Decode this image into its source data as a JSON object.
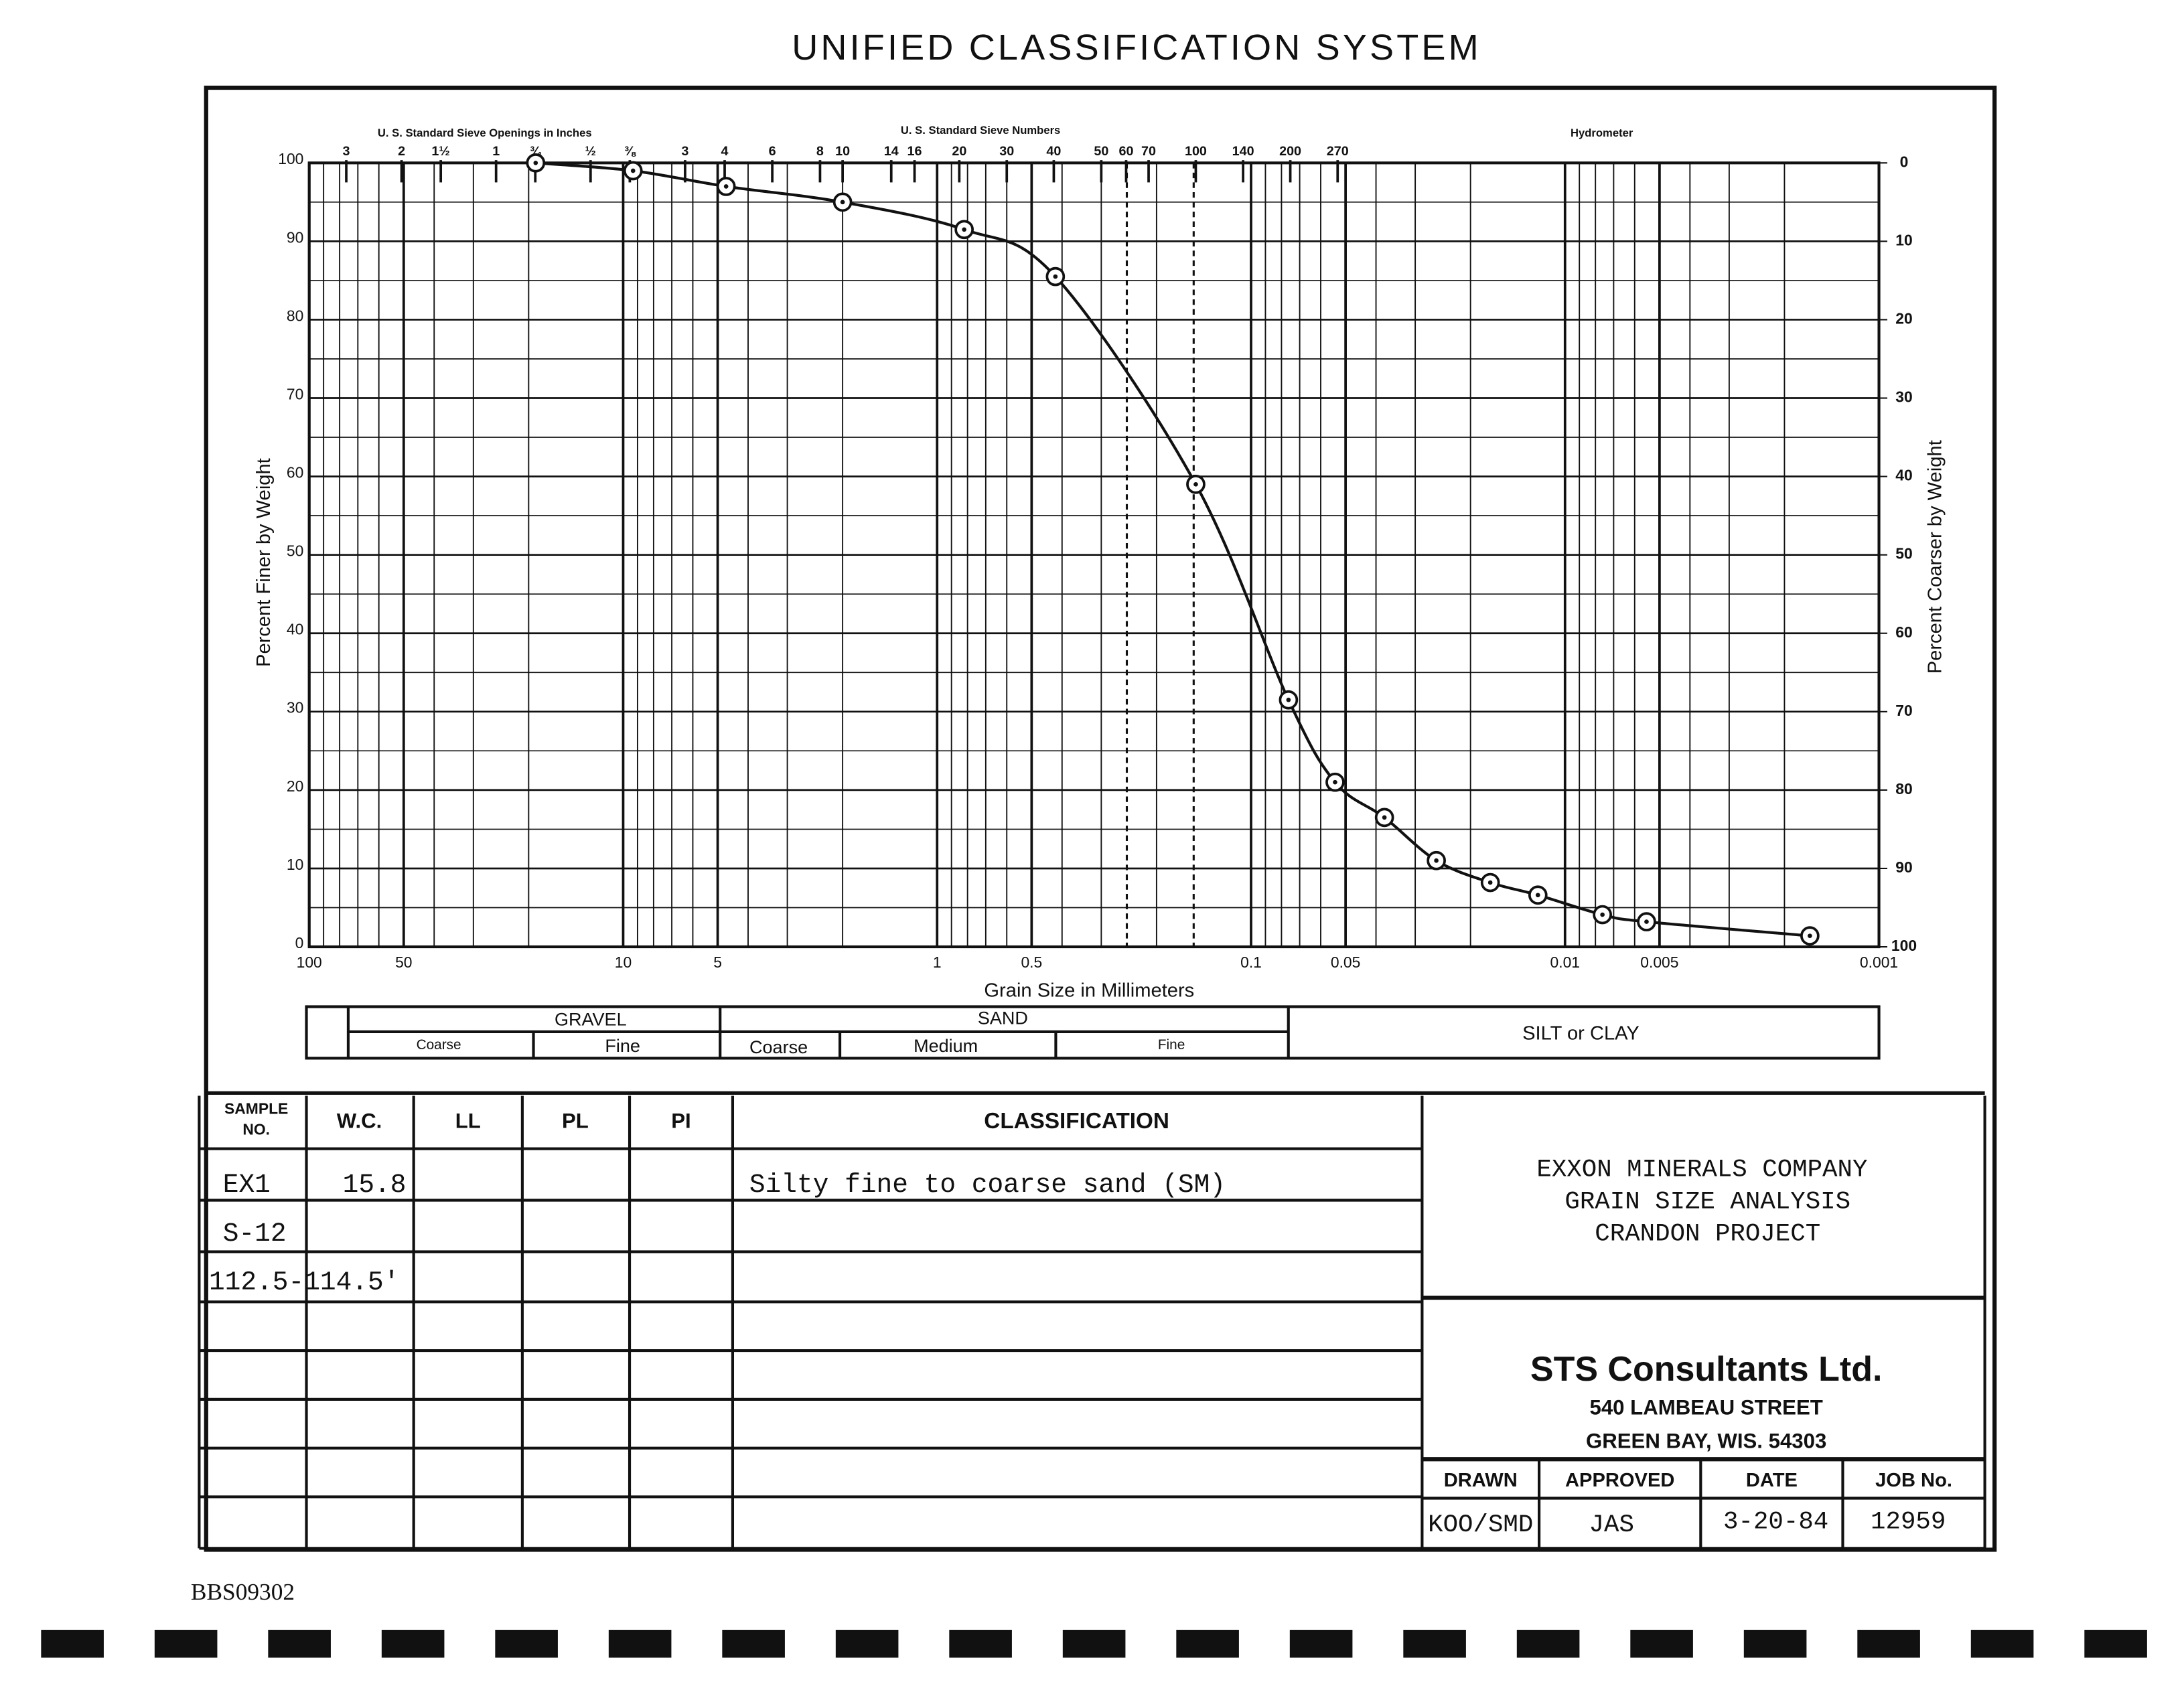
{
  "chart_data": {
    "type": "scatter",
    "title": "UNIFIED CLASSIFICATION SYSTEM",
    "x_label": "Grain Size in Millimeters",
    "y_label": "Percent Finer by Weight",
    "y2_label": "Percent Coarser by Weight",
    "x2_headers": [
      "U. S. Standard Sieve Openings in Inches",
      "U. S. Standard Sieve Numbers",
      "Hydrometer"
    ],
    "log_x": true,
    "grid": true,
    "color": "#111111",
    "x": [
      19,
      9.3,
      4.7,
      2.0,
      0.82,
      0.42,
      0.15,
      0.076,
      0.054,
      0.0376,
      0.0257,
      0.0173,
      0.0122,
      0.0076,
      0.0055,
      0.00166
    ],
    "values": [
      100,
      99,
      97,
      95,
      91.5,
      85.5,
      59,
      31.5,
      21,
      16.5,
      11,
      8.2,
      6.6,
      4.1,
      3.2,
      1.4
    ],
    "xlim": [
      100,
      0.001
    ],
    "xticks": [
      100,
      50,
      10,
      5,
      1,
      0.5,
      0.1,
      0.05,
      0.01,
      0.005,
      0.001
    ],
    "x2ticks": [
      {
        "value": 76.2,
        "label": "3"
      },
      {
        "value": 50.8,
        "label": "2"
      },
      {
        "value": 38.1,
        "label": "1½"
      },
      {
        "value": 25.4,
        "label": "1"
      },
      {
        "value": 19.05,
        "label": "¾"
      },
      {
        "value": 12.7,
        "label": "½"
      },
      {
        "value": 9.525,
        "label": "⅜"
      },
      {
        "value": 6.35,
        "label": "3"
      },
      {
        "value": 4.75,
        "label": "4"
      },
      {
        "value": 3.35,
        "label": "6"
      },
      {
        "value": 2.36,
        "label": "8"
      },
      {
        "value": 2.0,
        "label": "10"
      },
      {
        "value": 1.4,
        "label": "14"
      },
      {
        "value": 1.18,
        "label": "16"
      },
      {
        "value": 0.85,
        "label": "20"
      },
      {
        "value": 0.6,
        "label": "30"
      },
      {
        "value": 0.425,
        "label": "40"
      },
      {
        "value": 0.3,
        "label": "50"
      },
      {
        "value": 0.25,
        "label": "60"
      },
      {
        "value": 0.212,
        "label": "70"
      },
      {
        "value": 0.15,
        "label": "100"
      },
      {
        "value": 0.106,
        "label": "140"
      },
      {
        "value": 0.075,
        "label": "200"
      },
      {
        "value": 0.053,
        "label": "270"
      }
    ],
    "ylim": [
      0,
      100
    ],
    "yticks": [
      0,
      10,
      20,
      30,
      40,
      50,
      60,
      70,
      80,
      90,
      100
    ],
    "y2lim": [
      100,
      0
    ],
    "y2ticks": [
      0,
      10,
      20,
      30,
      40,
      50,
      60,
      70,
      80,
      90,
      100
    ],
    "classes": {
      "gravel": "GRAVEL",
      "sand": "SAND",
      "silt": "SILT or CLAY",
      "gravel_coarse": "Coarse",
      "gravel_fine": "Fine",
      "sand_coarse": "Coarse",
      "sand_medium": "Medium",
      "sand_fine": "Fine"
    }
  },
  "table": {
    "headers": {
      "sample_no": [
        "SAMPLE",
        "NO."
      ],
      "wc": "W.C.",
      "ll": "LL",
      "pl": "PL",
      "pi": "PI",
      "classification": "CLASSIFICATION"
    },
    "rows": [
      {
        "sample_no": "EX1",
        "wc": "15.8",
        "classification": "Silty fine to coarse sand (SM)"
      },
      {
        "sample_no": "S-12"
      },
      {
        "sample_no": "112.5-114.5'"
      }
    ]
  },
  "title_block": {
    "client": [
      "EXXON MINERALS COMPANY",
      "GRAIN SIZE ANALYSIS",
      "CRANDON PROJECT"
    ],
    "firm": "STS Consultants Ltd.",
    "address": [
      "540 LAMBEAU STREET",
      "GREEN BAY, WIS. 54303"
    ],
    "fields": {
      "drawn": {
        "label": "DRAWN",
        "value": "KOO/SMD"
      },
      "approved": {
        "label": "APPROVED",
        "value": "JAS"
      },
      "date": {
        "label": "DATE",
        "value": "3-20-84"
      },
      "job": {
        "label": "JOB No.",
        "value": "12959"
      }
    }
  },
  "footer": "BBS09302"
}
